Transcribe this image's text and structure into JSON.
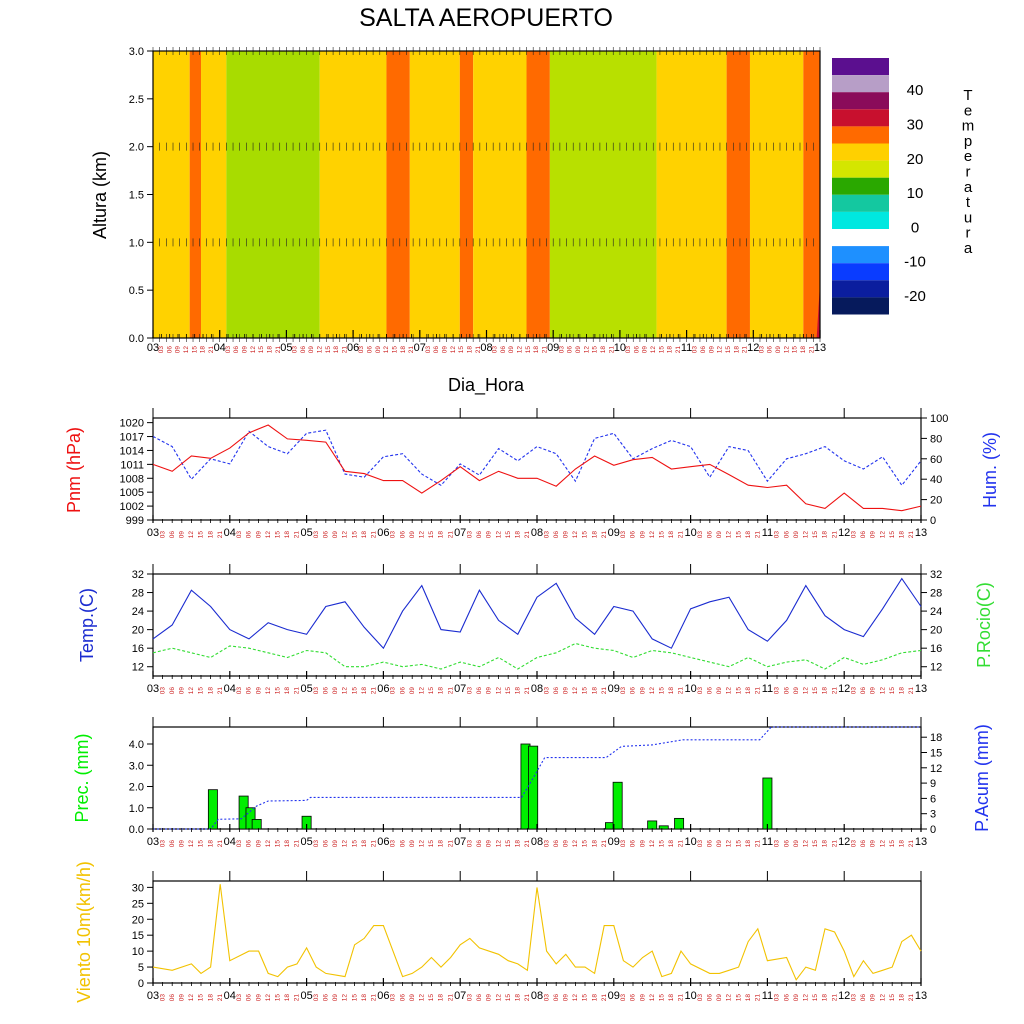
{
  "title": "SALTA AEROPUERTO",
  "day_labels": [
    "03",
    "04",
    "05",
    "06",
    "07",
    "08",
    "09",
    "10",
    "11",
    "12",
    "13"
  ],
  "hour_labels": [
    "03",
    "06",
    "09",
    "12",
    "15",
    "18",
    "21"
  ],
  "chart_data": [
    {
      "type": "heatmap",
      "panel": "temperatura_altura",
      "ylabel": "Altura (km)",
      "xlabel": "Dia_Hora",
      "ylim": [
        0,
        3
      ],
      "yticks": [
        "0.0",
        "0.5",
        "1.0",
        "1.5",
        "2.0",
        "2.5",
        "3.0"
      ],
      "x_range_days": [
        3,
        13
      ],
      "legend_title": "Temperatura",
      "legend_labels": [
        "40",
        "30",
        "20",
        "10",
        "0",
        "-10",
        "-20"
      ],
      "legend_colors": [
        "#5b0f8f",
        "#b79ec7",
        "#8a0b5a",
        "#c8102e",
        "#ff6a00",
        "#ffd000",
        "#d4e600",
        "#b4e000",
        "#2aa800",
        "#14c8a0",
        "#00e8e0",
        "#ffffff",
        "#1e90ff",
        "#0a3cff",
        "#0b1e9e",
        "#061a5c",
        "#0a0a3c"
      ],
      "time_axis_colors": {
        "day": "#000000",
        "hour": "#cc2222"
      },
      "bands": [
        {
          "from": 3.0,
          "to": 3.55,
          "value": 22
        },
        {
          "from": 3.55,
          "to": 3.72,
          "value": 28
        },
        {
          "from": 3.72,
          "to": 4.1,
          "value": 22
        },
        {
          "from": 4.1,
          "to": 5.5,
          "value": 18
        },
        {
          "from": 5.5,
          "to": 6.5,
          "value": 22
        },
        {
          "from": 6.5,
          "to": 6.85,
          "value": 28
        },
        {
          "from": 6.85,
          "to": 7.6,
          "value": 22
        },
        {
          "from": 7.6,
          "to": 7.8,
          "value": 28
        },
        {
          "from": 7.8,
          "to": 8.6,
          "value": 22
        },
        {
          "from": 8.6,
          "to": 8.95,
          "value": 28
        },
        {
          "from": 8.95,
          "to": 10.55,
          "value": 20
        },
        {
          "from": 10.55,
          "to": 11.6,
          "value": 22
        },
        {
          "from": 11.6,
          "to": 11.95,
          "value": 28
        },
        {
          "from": 11.95,
          "to": 12.75,
          "value": 22
        },
        {
          "from": 12.75,
          "to": 13.0,
          "value": 28
        }
      ],
      "wind_levels_km": [
        0.0,
        1.0,
        2.0,
        3.0
      ]
    },
    {
      "type": "line",
      "panel": "presion_humedad",
      "ylabel_left": "Pnm (hPa)",
      "ylabel_right": "Hum. (%)",
      "ylim_left": [
        999,
        1021
      ],
      "yticks_left": [
        "999",
        "1002",
        "1005",
        "1008",
        "1011",
        "1014",
        "1017",
        "1020"
      ],
      "ylim_right": [
        0,
        100
      ],
      "yticks_right": [
        "0",
        "20",
        "40",
        "60",
        "80",
        "100"
      ],
      "colors": {
        "left": "#ee1111",
        "right": "#2233ee"
      },
      "x": [
        3.0,
        3.25,
        3.5,
        3.75,
        4.0,
        4.25,
        4.5,
        4.75,
        5.0,
        5.25,
        5.5,
        5.75,
        6.0,
        6.25,
        6.5,
        6.75,
        7.0,
        7.25,
        7.5,
        7.75,
        8.0,
        8.25,
        8.5,
        8.75,
        9.0,
        9.25,
        9.5,
        9.75,
        10.0,
        10.25,
        10.5,
        10.75,
        11.0,
        11.25,
        11.5,
        11.75,
        12.0,
        12.25,
        12.5,
        12.75,
        13.0
      ],
      "series": [
        {
          "axis": "left",
          "values": [
            1011,
            1009.5,
            1012.8,
            1012.3,
            1014.5,
            1017.8,
            1019.5,
            1016.5,
            1016.2,
            1015.8,
            1009.5,
            1009,
            1007.5,
            1007.5,
            1004.8,
            1007.5,
            1010.5,
            1007.5,
            1009.5,
            1008,
            1008,
            1006.3,
            1010,
            1012.8,
            1010.8,
            1012,
            1012.5,
            1010,
            1010.5,
            1011,
            1008.8,
            1006.5,
            1006,
            1006.5,
            1002.5,
            1001.5,
            1004.8,
            1001.5,
            1001.5,
            1001,
            1002
          ]
        },
        {
          "axis": "right",
          "values": [
            82,
            72,
            40,
            60,
            55,
            87,
            72,
            65,
            85,
            88,
            45,
            42,
            62,
            65,
            45,
            34,
            55,
            44,
            70,
            58,
            72,
            65,
            38,
            80,
            85,
            60,
            70,
            78,
            72,
            42,
            72,
            68,
            38,
            60,
            65,
            72,
            58,
            50,
            62,
            34,
            58
          ]
        }
      ]
    },
    {
      "type": "line",
      "panel": "temperatura_rocio",
      "ylabel_left": "Temp.(C)",
      "ylabel_right": "P.Rocio(C)",
      "ylim": [
        10,
        32
      ],
      "yticks": [
        "12",
        "16",
        "20",
        "24",
        "28",
        "32"
      ],
      "colors": {
        "left": "#1a2bd0",
        "right": "#33dd33"
      },
      "x": [
        3.0,
        3.25,
        3.5,
        3.75,
        4.0,
        4.25,
        4.5,
        4.75,
        5.0,
        5.25,
        5.5,
        5.75,
        6.0,
        6.25,
        6.5,
        6.75,
        7.0,
        7.25,
        7.5,
        7.75,
        8.0,
        8.25,
        8.5,
        8.75,
        9.0,
        9.25,
        9.5,
        9.75,
        10.0,
        10.25,
        10.5,
        10.75,
        11.0,
        11.25,
        11.5,
        11.75,
        12.0,
        12.25,
        12.5,
        12.75,
        13.0
      ],
      "series": [
        {
          "axis": "left",
          "values": [
            18,
            21,
            28.5,
            25,
            20,
            18,
            21.5,
            20,
            19,
            25,
            26,
            20.5,
            16,
            24,
            29.5,
            20,
            19.5,
            28.5,
            22,
            19,
            27,
            30,
            22.5,
            19,
            25,
            24,
            18,
            16,
            24.5,
            26,
            27,
            20,
            17.5,
            22,
            29.5,
            23,
            20,
            18.5,
            24.5,
            31,
            25
          ]
        },
        {
          "axis": "right",
          "values": [
            15,
            16,
            15,
            14,
            16.5,
            16,
            15,
            14,
            15.5,
            15,
            12,
            12,
            13,
            12,
            12.5,
            11.5,
            13,
            12,
            14,
            11.5,
            14,
            15,
            17,
            16,
            15.5,
            14,
            15.5,
            15,
            14,
            13,
            12,
            14,
            12,
            13,
            13.5,
            11.5,
            14,
            12.5,
            13.5,
            15,
            15.5
          ]
        }
      ]
    },
    {
      "type": "bar",
      "panel": "precipitacion",
      "ylabel_left": "Prec. (mm)",
      "ylabel_right": "P.Acum (mm)",
      "ylim_left": [
        0,
        4.8
      ],
      "yticks_left": [
        "0.0",
        "1.0",
        "2.0",
        "3.0",
        "4.0"
      ],
      "ylim_right": [
        0,
        20
      ],
      "yticks_right": [
        "0",
        "3",
        "6",
        "9",
        "12",
        "15",
        "18"
      ],
      "colors": {
        "bars": "#00ee00",
        "bar_edge": "#000000",
        "accum": "#2233ee"
      },
      "bars": [
        {
          "x": 3.78,
          "value": 1.85
        },
        {
          "x": 4.18,
          "value": 1.55
        },
        {
          "x": 4.27,
          "value": 1.0
        },
        {
          "x": 4.35,
          "value": 0.45
        },
        {
          "x": 5.0,
          "value": 0.6
        },
        {
          "x": 7.85,
          "value": 4.0
        },
        {
          "x": 7.95,
          "value": 3.9
        },
        {
          "x": 8.95,
          "value": 0.3
        },
        {
          "x": 9.05,
          "value": 2.2
        },
        {
          "x": 9.5,
          "value": 0.38
        },
        {
          "x": 9.65,
          "value": 0.15
        },
        {
          "x": 9.85,
          "value": 0.5
        },
        {
          "x": 11.0,
          "value": 2.4
        }
      ],
      "accum_x": [
        3.0,
        3.75,
        3.85,
        4.15,
        4.35,
        4.5,
        5.0,
        5.05,
        7.8,
        7.95,
        8.1,
        8.9,
        9.1,
        9.5,
        9.9,
        10.9,
        11.05,
        13.0
      ],
      "accum_values": [
        0,
        0,
        1.9,
        2,
        4.5,
        5.5,
        5.6,
        6.2,
        6.2,
        10,
        14,
        14,
        16.2,
        16.5,
        17.5,
        17.5,
        20,
        20
      ]
    },
    {
      "type": "line",
      "panel": "viento",
      "ylabel": "Viento 10m(km/h)",
      "ylim": [
        0,
        32
      ],
      "yticks": [
        "0",
        "5",
        "10",
        "15",
        "20",
        "25",
        "30"
      ],
      "colors": {
        "line": "#f2c200"
      },
      "x": [
        3.0,
        3.25,
        3.5,
        3.625,
        3.75,
        3.875,
        4.0,
        4.25,
        4.375,
        4.5,
        4.625,
        4.75,
        4.875,
        5.0,
        5.125,
        5.25,
        5.5,
        5.625,
        5.75,
        5.875,
        6.0,
        6.25,
        6.375,
        6.5,
        6.625,
        6.75,
        6.875,
        7.0,
        7.125,
        7.25,
        7.5,
        7.625,
        7.75,
        7.875,
        8.0,
        8.125,
        8.25,
        8.375,
        8.5,
        8.625,
        8.75,
        8.875,
        9.0,
        9.125,
        9.25,
        9.375,
        9.5,
        9.625,
        9.75,
        9.875,
        10.0,
        10.25,
        10.375,
        10.5,
        10.625,
        10.75,
        10.875,
        11.0,
        11.25,
        11.375,
        11.5,
        11.625,
        11.75,
        11.875,
        12.0,
        12.125,
        12.25,
        12.375,
        12.5,
        12.625,
        12.75,
        12.875,
        13.0
      ],
      "values": [
        5,
        4,
        6,
        3,
        5,
        31,
        7,
        10,
        10,
        3,
        2,
        5,
        6,
        11,
        5,
        3,
        2,
        12,
        14,
        18,
        18,
        2,
        3,
        5,
        8,
        5,
        8,
        12,
        14,
        11,
        9,
        7,
        6,
        4,
        30,
        10,
        6,
        9,
        5,
        5,
        3,
        18,
        18,
        7,
        5,
        8,
        10,
        2,
        3,
        10,
        6,
        3,
        3,
        4,
        5,
        13,
        17,
        7,
        8,
        1,
        5,
        4,
        17,
        16,
        10,
        2,
        7,
        3,
        4,
        5,
        13,
        15,
        10
      ]
    }
  ]
}
